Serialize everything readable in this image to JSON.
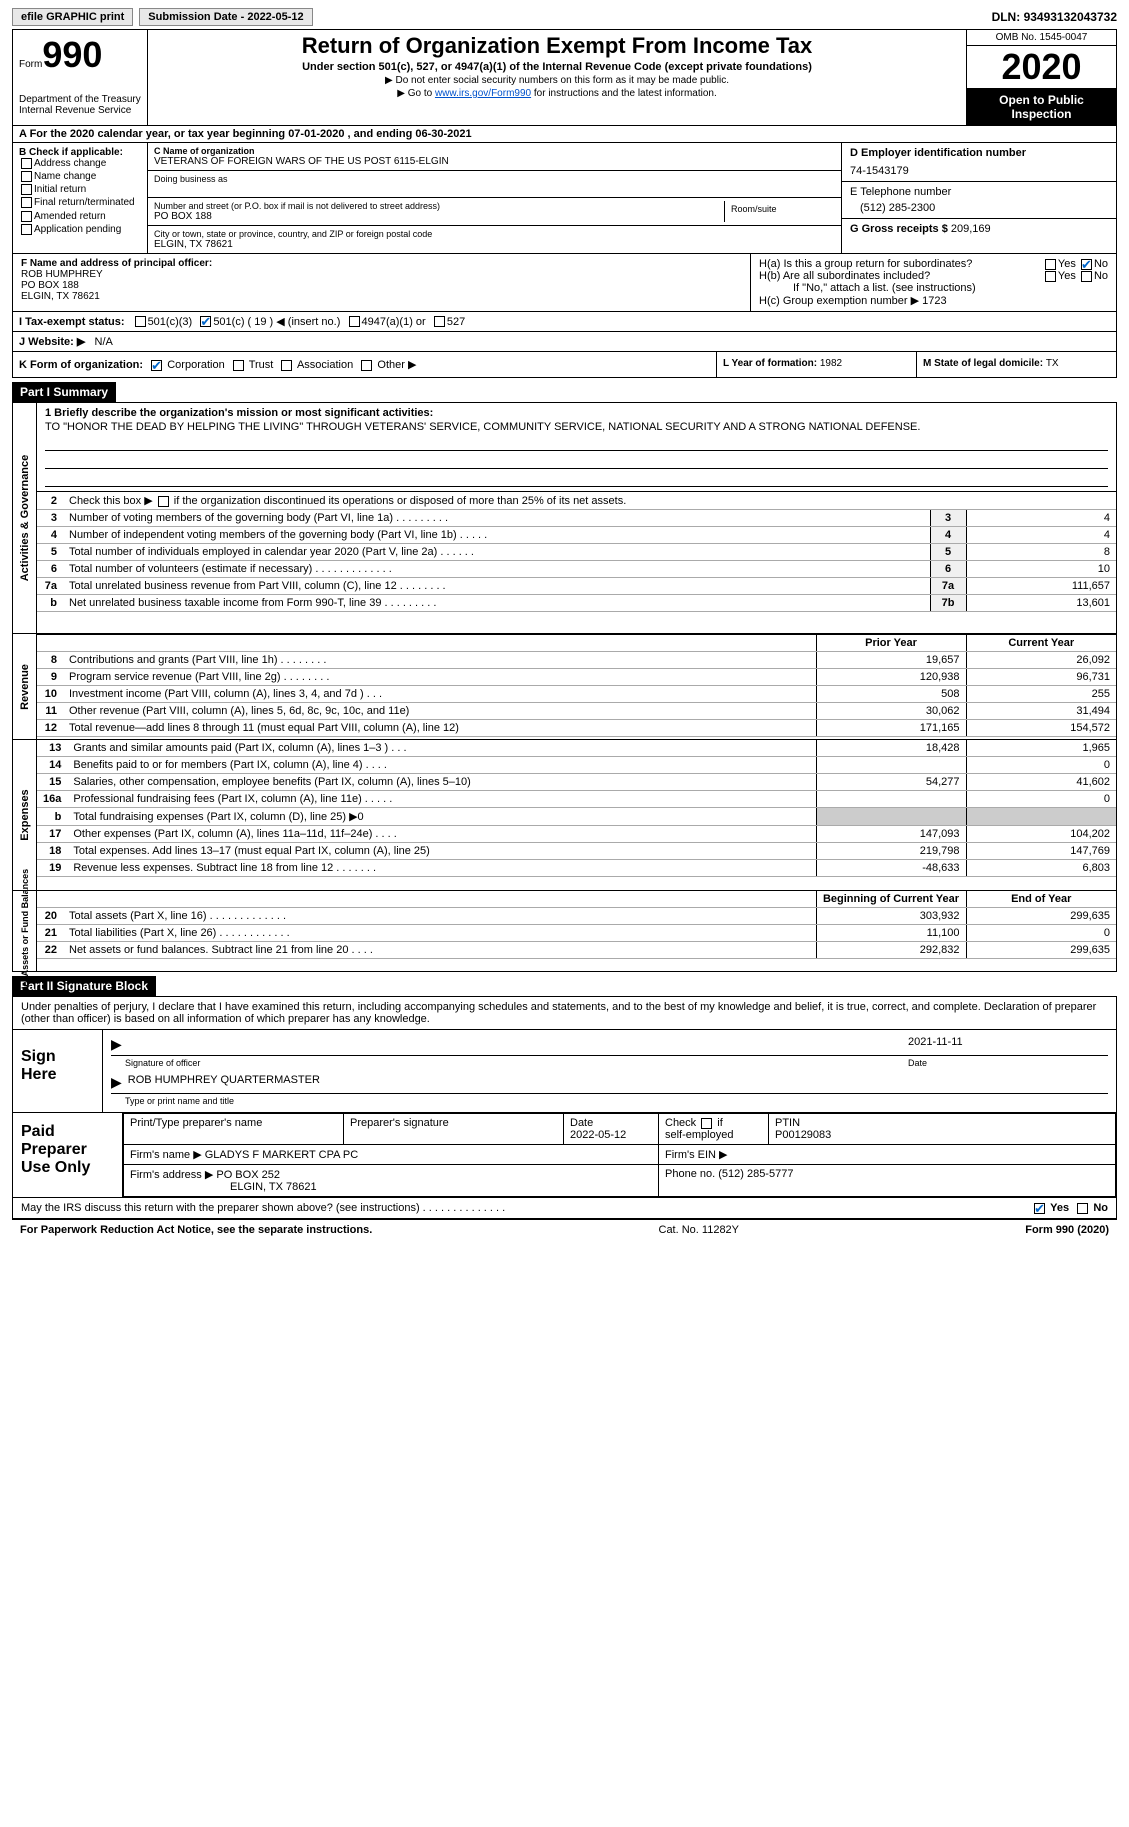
{
  "topbar": {
    "efile_btn": "efile GRAPHIC print",
    "submission_label": "Submission Date - ",
    "submission_date": "2022-05-12",
    "dln_label": "DLN: ",
    "dln": "93493132043732"
  },
  "header": {
    "form_prefix": "Form",
    "form_num": "990",
    "dept1": "Department of the Treasury",
    "dept2": "Internal Revenue Service",
    "title": "Return of Organization Exempt From Income Tax",
    "subtitle": "Under section 501(c), 527, or 4947(a)(1) of the Internal Revenue Code (except private foundations)",
    "note1": "▶ Do not enter social security numbers on this form as it may be made public.",
    "note2_pre": "▶ Go to ",
    "note2_link": "www.irs.gov/Form990",
    "note2_post": " for instructions and the latest information.",
    "omb": "OMB No. 1545-0047",
    "year": "2020",
    "inspection": "Open to Public Inspection"
  },
  "row_a": "A For the 2020 calendar year, or tax year beginning 07-01-2020    , and ending 06-30-2021",
  "col_b": {
    "title": "B Check if applicable:",
    "opts": [
      "Address change",
      "Name change",
      "Initial return",
      "Final return/terminated",
      "Amended return",
      "Application pending"
    ]
  },
  "col_c": {
    "name_lbl": "C Name of organization",
    "name": "VETERANS OF FOREIGN WARS OF THE US POST 6115-ELGIN",
    "dba_lbl": "Doing business as",
    "addr_lbl": "Number and street (or P.O. box if mail is not delivered to street address)",
    "room_lbl": "Room/suite",
    "addr": "PO BOX 188",
    "city_lbl": "City or town, state or province, country, and ZIP or foreign postal code",
    "city": "ELGIN, TX  78621"
  },
  "col_d": {
    "ein_lbl": "D Employer identification number",
    "ein": "74-1543179",
    "phone_lbl": "E Telephone number",
    "phone": "(512) 285-2300",
    "gross_lbl": "G Gross receipts $ ",
    "gross": "209,169"
  },
  "principal": {
    "f_lbl": "F Name and address of principal officer:",
    "name": "ROB HUMPHREY",
    "addr1": "PO BOX 188",
    "addr2": "ELGIN, TX  78621",
    "ha": "H(a)  Is this a group return for subordinates?",
    "hb": "H(b)  Are all subordinates included?",
    "hb_note": "If \"No,\" attach a list. (see instructions)",
    "hc": "H(c)  Group exemption number ▶   1723",
    "yes": "Yes",
    "no": "No"
  },
  "status": {
    "i_lbl": "I    Tax-exempt status:",
    "c3": "501(c)(3)",
    "c": "501(c) ( 19 ) ◀ (insert no.)",
    "a1": "4947(a)(1) or",
    "527": "527"
  },
  "website": {
    "lbl": "J   Website: ▶",
    "val": "N/A"
  },
  "korg": {
    "k_lbl": "K Form of organization:",
    "corp": "Corporation",
    "trust": "Trust",
    "assoc": "Association",
    "other": "Other ▶",
    "l_lbl": "L Year of formation: ",
    "l_val": "1982",
    "m_lbl": "M State of legal domicile: ",
    "m_val": "TX"
  },
  "parts": {
    "p1": "Part I      Summary",
    "p2": "Part II     Signature Block"
  },
  "mission": {
    "lbl": "1 Briefly describe the organization's mission or most significant activities:",
    "txt": "TO \"HONOR THE DEAD BY HELPING THE LIVING\" THROUGH VETERANS' SERVICE, COMMUNITY SERVICE, NATIONAL SECURITY AND A STRONG NATIONAL DEFENSE."
  },
  "governance_rows": [
    {
      "n": "2",
      "d": "Check this box ▶    if the organization discontinued its operations or disposed of more than 25% of its net assets.",
      "box": "",
      "v": ""
    },
    {
      "n": "3",
      "d": "Number of voting members of the governing body (Part VI, line 1a)   .    .    .    .    .    .    .    .    .",
      "box": "3",
      "v": "4"
    },
    {
      "n": "4",
      "d": "Number of independent voting members of the governing body (Part VI, line 1b)   .    .    .    .    .",
      "box": "4",
      "v": "4"
    },
    {
      "n": "5",
      "d": "Total number of individuals employed in calendar year 2020 (Part V, line 2a)   .    .    .    .    .    .",
      "box": "5",
      "v": "8"
    },
    {
      "n": "6",
      "d": "Total number of volunteers (estimate if necessary)   .    .    .    .    .    .    .    .    .    .    .    .    .",
      "box": "6",
      "v": "10"
    },
    {
      "n": "7a",
      "d": "Total unrelated business revenue from Part VIII, column (C), line 12   .    .    .    .    .    .    .    .",
      "box": "7a",
      "v": "111,657"
    },
    {
      "n": "b",
      "d": "Net unrelated business taxable income from Form 990-T, line 39   .    .    .    .    .    .    .    .    .",
      "box": "7b",
      "v": "13,601"
    }
  ],
  "fin_hdr": {
    "py": "Prior Year",
    "cy": "Current Year"
  },
  "revenue_rows": [
    {
      "n": "8",
      "d": "Contributions and grants (Part VIII, line 1h)   .    .    .    .    .    .    .    .",
      "py": "19,657",
      "cy": "26,092"
    },
    {
      "n": "9",
      "d": "Program service revenue (Part VIII, line 2g)   .    .    .    .    .    .    .    .",
      "py": "120,938",
      "cy": "96,731"
    },
    {
      "n": "10",
      "d": "Investment income (Part VIII, column (A), lines 3, 4, and 7d )   .    .    .",
      "py": "508",
      "cy": "255"
    },
    {
      "n": "11",
      "d": "Other revenue (Part VIII, column (A), lines 5, 6d, 8c, 9c, 10c, and 11e)",
      "py": "30,062",
      "cy": "31,494"
    },
    {
      "n": "12",
      "d": "Total revenue—add lines 8 through 11 (must equal Part VIII, column (A), line 12)",
      "py": "171,165",
      "cy": "154,572"
    }
  ],
  "expense_rows": [
    {
      "n": "13",
      "d": "Grants and similar amounts paid (Part IX, column (A), lines 1–3 )   .    .    .",
      "py": "18,428",
      "cy": "1,965"
    },
    {
      "n": "14",
      "d": "Benefits paid to or for members (Part IX, column (A), line 4)   .    .    .    .",
      "py": "",
      "cy": "0"
    },
    {
      "n": "15",
      "d": "Salaries, other compensation, employee benefits (Part IX, column (A), lines 5–10)",
      "py": "54,277",
      "cy": "41,602"
    },
    {
      "n": "16a",
      "d": "Professional fundraising fees (Part IX, column (A), line 11e)   .    .    .    .    .",
      "py": "",
      "cy": "0"
    },
    {
      "n": "b",
      "d": "Total fundraising expenses (Part IX, column (D), line 25) ▶0",
      "py": "shaded",
      "cy": "shaded"
    },
    {
      "n": "17",
      "d": "Other expenses (Part IX, column (A), lines 11a–11d, 11f–24e)   .    .    .    .",
      "py": "147,093",
      "cy": "104,202"
    },
    {
      "n": "18",
      "d": "Total expenses. Add lines 13–17 (must equal Part IX, column (A), line 25)",
      "py": "219,798",
      "cy": "147,769"
    },
    {
      "n": "19",
      "d": "Revenue less expenses. Subtract line 18 from line 12 .    .    .    .    .    .    .",
      "py": "-48,633",
      "cy": "6,803"
    }
  ],
  "net_hdr": {
    "py": "Beginning of Current Year",
    "cy": "End of Year"
  },
  "net_rows": [
    {
      "n": "20",
      "d": "Total assets (Part X, line 16)   .    .    .    .    .    .    .    .    .    .    .    .    .",
      "py": "303,932",
      "cy": "299,635"
    },
    {
      "n": "21",
      "d": "Total liabilities (Part X, line 26)   .    .    .    .    .    .    .    .    .    .    .    .",
      "py": "11,100",
      "cy": "0"
    },
    {
      "n": "22",
      "d": "Net assets or fund balances. Subtract line 21 from line 20   .    .    .    .",
      "py": "292,832",
      "cy": "299,635"
    }
  ],
  "sig": {
    "decl": "Under penalties of perjury, I declare that I have examined this return, including accompanying schedules and statements, and to the best of my knowledge and belief, it is true, correct, and complete. Declaration of preparer (other than officer) is based on all information of which preparer has any knowledge.",
    "sign_here": "Sign Here",
    "sig_officer": "Signature of officer",
    "date": "2021-11-11",
    "date_lbl": "Date",
    "name": "ROB HUMPHREY QUARTERMASTER",
    "name_lbl": "Type or print name and title"
  },
  "prep": {
    "lbl": "Paid Preparer Use Only",
    "h1": "Print/Type preparer's name",
    "h2": "Preparer's signature",
    "h3_lbl": "Date",
    "h3": "2022-05-12",
    "h4": "Check      if self-employed",
    "h5_lbl": "PTIN",
    "h5": "P00129083",
    "firm_name_lbl": "Firm's name     ▶ ",
    "firm_name": "GLADYS F MARKERT CPA PC",
    "firm_ein": "Firm's EIN ▶",
    "firm_addr_lbl": "Firm's address ▶ ",
    "firm_addr1": "PO BOX 252",
    "firm_addr2": "ELGIN, TX  78621",
    "phone_lbl": "Phone no. ",
    "phone": "(512) 285-5777"
  },
  "irs_q": "May the IRS discuss this return with the preparer shown above? (see instructions)   .    .    .    .    .    .    .    .    .    .    .    .    .    .    ",
  "footer": {
    "l": "For Paperwork Reduction Act Notice, see the separate instructions.",
    "m": "Cat. No. 11282Y",
    "r": "Form 990 (2020)"
  },
  "vtabs": {
    "ag": "Activities & Governance",
    "rev": "Revenue",
    "exp": "Expenses",
    "net": "Net Assets or Fund Balances"
  }
}
